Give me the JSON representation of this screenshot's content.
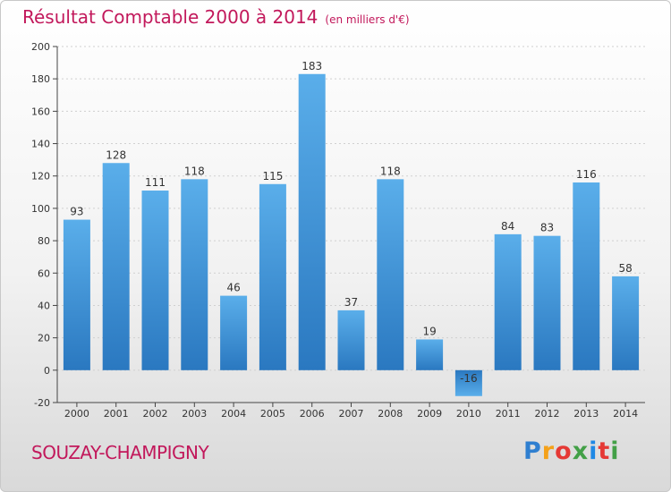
{
  "chart_data": {
    "type": "bar",
    "title": "Résultat Comptable 2000 à 2014",
    "unit_label": "(en milliers d'€)",
    "categories": [
      "2000",
      "2001",
      "2002",
      "2003",
      "2004",
      "2005",
      "2006",
      "2007",
      "2008",
      "2009",
      "2010",
      "2011",
      "2012",
      "2013",
      "2014"
    ],
    "values": [
      93,
      128,
      111,
      118,
      46,
      115,
      183,
      37,
      118,
      19,
      -16,
      84,
      83,
      116,
      58
    ],
    "ylim": [
      -20,
      200
    ],
    "yticks": [
      -20,
      0,
      20,
      40,
      60,
      80,
      100,
      120,
      140,
      160,
      180,
      200
    ],
    "xlabel": "",
    "ylabel": "",
    "grid": true,
    "bar_color": "#3a8fd6"
  },
  "footer": {
    "commune": "SOUZAY-CHAMPIGNY",
    "logo_letters": [
      "P",
      "r",
      "o",
      "x",
      "i",
      "t",
      "i"
    ]
  }
}
